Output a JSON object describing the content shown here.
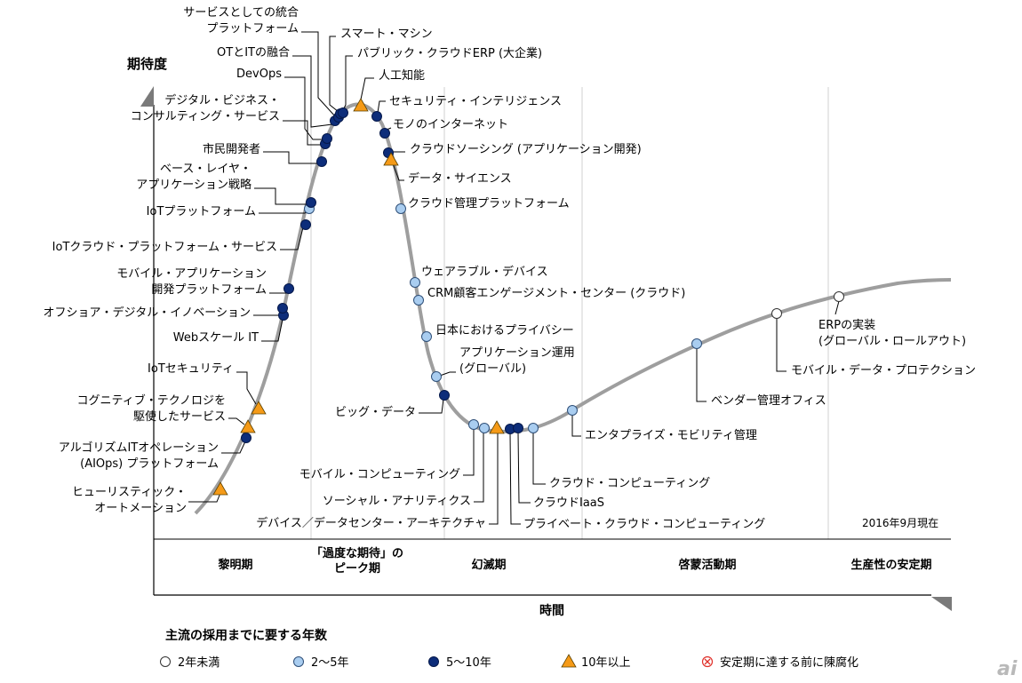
{
  "chart_data": {
    "type": "scatter",
    "title": "",
    "ylabel": "期待度",
    "xlabel": "時間",
    "date_note": "2016年9月現在",
    "phases": [
      "黎明期",
      "「過度な期待」の\nピーク期",
      "幻滅期",
      "啓蒙活動期",
      "生産性の安定期"
    ],
    "legend_title": "主流の採用までに要する年数",
    "legend": [
      {
        "key": "lt2",
        "label": "2年未満"
      },
      {
        "key": "2to5",
        "label": "2〜5年"
      },
      {
        "key": "5to10",
        "label": "5〜10年"
      },
      {
        "key": "gt10",
        "label": "10年以上"
      },
      {
        "key": "obsolete",
        "label": "安定期に達する前に陳腐化"
      }
    ],
    "colors": {
      "lt2": "#ffffff",
      "2to5": "#a9cdf0",
      "5to10": "#0d2d7a",
      "gt10": "#f59a17",
      "obsolete": "#e0302a",
      "curve": "#9e9e9e"
    },
    "points": [
      {
        "name": "ヒューリスティック・\nオートメーション",
        "cat": "gt10",
        "phase": "黎明期"
      },
      {
        "name": "アルゴリズムITオペレーション\n(AIOps) プラットフォーム",
        "cat": "5to10",
        "phase": "黎明期"
      },
      {
        "name": "コグニティブ・テクノロジを\n駆使したサービス",
        "cat": "gt10",
        "phase": "黎明期"
      },
      {
        "name": "IoTセキュリティ",
        "cat": "gt10",
        "phase": "黎明期"
      },
      {
        "name": "Webスケール IT",
        "cat": "5to10",
        "phase": "黎明期"
      },
      {
        "name": "オフショア・デジタル・イノベーション",
        "cat": "5to10",
        "phase": "黎明期"
      },
      {
        "name": "モバイル・アプリケーション\n開発プラットフォーム",
        "cat": "5to10",
        "phase": "黎明期"
      },
      {
        "name": "IoTクラウド・プラットフォーム・サービス",
        "cat": "5to10",
        "phase": "黎明期"
      },
      {
        "name": "IoTプラットフォーム",
        "cat": "2to5",
        "phase": "黎明期"
      },
      {
        "name": "ベース・レイヤ・\nアプリケーション戦略",
        "cat": "5to10",
        "phase": "黎明期"
      },
      {
        "name": "市民開発者",
        "cat": "5to10",
        "phase": "「過度な期待」のピーク期"
      },
      {
        "name": "デジタル・ビジネス・\nコンサルティング・サービス",
        "cat": "5to10",
        "phase": "「過度な期待」のピーク期"
      },
      {
        "name": "DevOps",
        "cat": "5to10",
        "phase": "「過度な期待」のピーク期"
      },
      {
        "name": "OTとITの融合",
        "cat": "5to10",
        "phase": "「過度な期待」のピーク期"
      },
      {
        "name": "サービスとしての統合\nプラットフォーム",
        "cat": "5to10",
        "phase": "「過度な期待」のピーク期"
      },
      {
        "name": "スマート・マシン",
        "cat": "5to10",
        "phase": "「過度な期待」のピーク期"
      },
      {
        "name": "パブリック・クラウドERP (大企業)",
        "cat": "5to10",
        "phase": "「過度な期待」のピーク期"
      },
      {
        "name": "人工知能",
        "cat": "gt10",
        "phase": "「過度な期待」のピーク期"
      },
      {
        "name": "セキュリティ・インテリジェンス",
        "cat": "5to10",
        "phase": "「過度な期待」のピーク期"
      },
      {
        "name": "モノのインターネット",
        "cat": "5to10",
        "phase": "「過度な期待」のピーク期"
      },
      {
        "name": "クラウドソーシング (アプリケーション開発)",
        "cat": "5to10",
        "phase": "「過度な期待」のピーク期"
      },
      {
        "name": "データ・サイエンス",
        "cat": "gt10",
        "phase": "「過度な期待」のピーク期"
      },
      {
        "name": "クラウド管理プラットフォーム",
        "cat": "2to5",
        "phase": "幻滅期"
      },
      {
        "name": "ウェアラブル・デバイス",
        "cat": "2to5",
        "phase": "幻滅期"
      },
      {
        "name": "CRM顧客エンゲージメント・センター (クラウド)",
        "cat": "2to5",
        "phase": "幻滅期"
      },
      {
        "name": "日本におけるプライバシー",
        "cat": "2to5",
        "phase": "幻滅期"
      },
      {
        "name": "アプリケーション運用\n(グローバル)",
        "cat": "2to5",
        "phase": "幻滅期"
      },
      {
        "name": "ビッグ・データ",
        "cat": "5to10",
        "phase": "幻滅期"
      },
      {
        "name": "モバイル・コンピューティング",
        "cat": "2to5",
        "phase": "幻滅期"
      },
      {
        "name": "ソーシャル・アナリティクス",
        "cat": "2to5",
        "phase": "幻滅期"
      },
      {
        "name": "デバイス／データセンター・アーキテクチャ",
        "cat": "gt10",
        "phase": "幻滅期"
      },
      {
        "name": "プライベート・クラウド・コンピューティング",
        "cat": "5to10",
        "phase": "幻滅期"
      },
      {
        "name": "クラウドIaaS",
        "cat": "5to10",
        "phase": "幻滅期"
      },
      {
        "name": "クラウド・コンピューティング",
        "cat": "2to5",
        "phase": "幻滅期"
      },
      {
        "name": "エンタプライズ・モビリティ管理",
        "cat": "2to5",
        "phase": "啓蒙活動期"
      },
      {
        "name": "ベンダー管理オフィス",
        "cat": "2to5",
        "phase": "啓蒙活動期"
      },
      {
        "name": "モバイル・データ・プロテクション",
        "cat": "lt2",
        "phase": "啓蒙活動期"
      },
      {
        "name": "ERPの実装\n(グローバル・ロールアウト)",
        "cat": "lt2",
        "phase": "啓蒙活動期"
      }
    ]
  },
  "watermark": "ai"
}
